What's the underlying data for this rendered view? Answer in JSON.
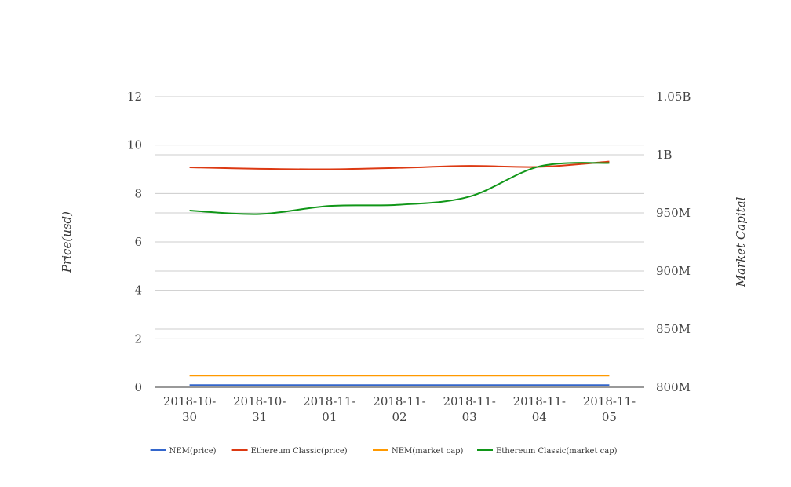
{
  "chart_data": {
    "type": "line",
    "categories": [
      [
        "2018-10-",
        "30"
      ],
      [
        "2018-10-",
        "31"
      ],
      [
        "2018-11-",
        "01"
      ],
      [
        "2018-11-",
        "02"
      ],
      [
        "2018-11-",
        "03"
      ],
      [
        "2018-11-",
        "04"
      ],
      [
        "2018-11-",
        "05"
      ]
    ],
    "ylabel_left": "Price(usd)",
    "ylabel_right": "Market Capital",
    "ylim_left": [
      0,
      12
    ],
    "yticks_left": [
      "0",
      "2",
      "4",
      "6",
      "8",
      "10",
      "12"
    ],
    "ylim_right": [
      800000000,
      1050000000
    ],
    "yticks_right": [
      "800M",
      "850M",
      "900M",
      "950M",
      "1B",
      "1.05B"
    ],
    "grid": true,
    "legend_position": "bottom",
    "series": [
      {
        "name": "NEM(price)",
        "axis": "left",
        "color": "#3366cc",
        "values": [
          0.09,
          0.09,
          0.09,
          0.09,
          0.09,
          0.09,
          0.09
        ]
      },
      {
        "name": "Ethereum Classic(price)",
        "axis": "left",
        "color": "#dc3912",
        "values": [
          9.08,
          9.02,
          9.0,
          9.06,
          9.14,
          9.1,
          9.32
        ]
      },
      {
        "name": "NEM(market cap)",
        "axis": "right",
        "color": "#ff9900",
        "values": [
          810000000,
          810000000,
          810000000,
          810000000,
          810000000,
          810000000,
          810000000
        ]
      },
      {
        "name": "Ethereum Classic(market cap)",
        "axis": "right",
        "color": "#109618",
        "values": [
          952000000,
          949000000,
          956000000,
          957000000,
          964000000,
          990000000,
          993000000
        ]
      }
    ]
  }
}
